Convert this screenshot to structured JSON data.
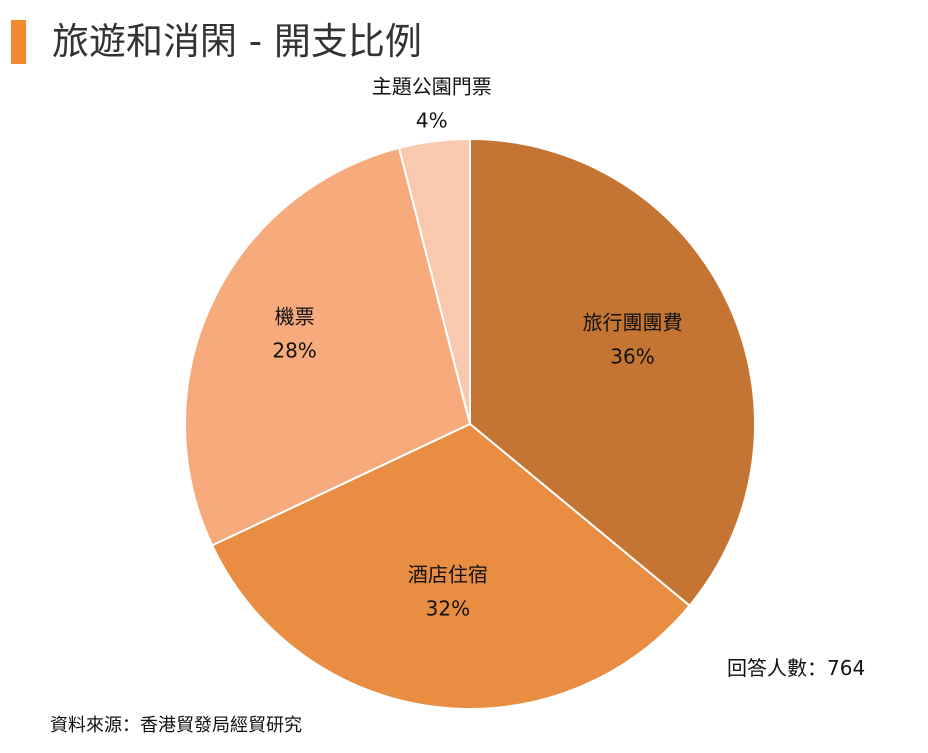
{
  "header": {
    "title": "旅遊和消閑 - 開支比例",
    "accent_color": "#F28A30"
  },
  "chart_data": {
    "type": "pie",
    "title": "旅遊和消閑 - 開支比例",
    "slices": [
      {
        "label": "旅行團團費",
        "value": 36,
        "value_label": "36%",
        "color": "#C47533"
      },
      {
        "label": "酒店住宿",
        "value": 32,
        "value_label": "32%",
        "color": "#E98D43"
      },
      {
        "label": "機票",
        "value": 28,
        "value_label": "28%",
        "color": "#F7AB7C"
      },
      {
        "label": "主題公園門票",
        "value": 4,
        "value_label": "4%",
        "color": "#F9C9AF"
      }
    ],
    "start_angle_deg": 0,
    "direction": "clockwise",
    "legend": "none",
    "slice_border_color": "#FFFFFF"
  },
  "footer": {
    "respondents": "回答人數：764",
    "source": "資料來源：香港貿發局經貿研究"
  }
}
